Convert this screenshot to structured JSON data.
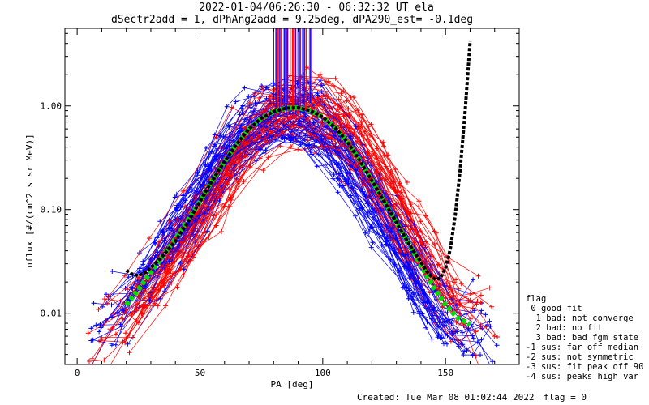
{
  "chart_data": {
    "type": "line",
    "title": "2022-01-04/06:26:30 - 06:32:32 UT ela",
    "subtitle": "dSectr2add = 1, dPhAng2add = 9.25deg, dPA290_est=  -0.1deg",
    "xlabel": "PA [deg]",
    "ylabel": "nflux [#/(cm^2 s sr MeV)]",
    "xlim": [
      -5,
      180
    ],
    "ylim": [
      0.0032,
      5.6
    ],
    "yscale": "log",
    "x_ticks": [
      0,
      50,
      100,
      150
    ],
    "x_tick_labels": [
      "0",
      "50",
      "100",
      "150"
    ],
    "y_ticks": [
      0.01,
      0.1,
      1.0
    ],
    "y_tick_labels": [
      "0.01",
      "0.10",
      "1.00"
    ],
    "series": [
      {
        "name": "",
        "color": "#00dd00",
        "style": "dashed-thick",
        "x": [
          20,
          25,
          30,
          35,
          40,
          45,
          50,
          55,
          60,
          65,
          70,
          75,
          80,
          85,
          90,
          95,
          100,
          105,
          110,
          115,
          120,
          125,
          130,
          135,
          140,
          145,
          150,
          155,
          160
        ],
        "y": [
          0.012,
          0.017,
          0.025,
          0.036,
          0.052,
          0.078,
          0.12,
          0.19,
          0.29,
          0.43,
          0.6,
          0.76,
          0.88,
          0.95,
          0.96,
          0.9,
          0.78,
          0.62,
          0.45,
          0.3,
          0.19,
          0.12,
          0.075,
          0.047,
          0.029,
          0.018,
          0.012,
          0.009,
          0.0078
        ]
      },
      {
        "name": "",
        "color": "#000000",
        "style": "dashed-thick",
        "x": [
          20,
          22,
          25,
          28,
          31,
          34,
          37,
          40,
          45,
          50,
          55,
          60,
          65,
          70,
          75,
          80,
          85,
          90,
          95,
          100,
          105,
          110,
          115,
          120,
          125,
          130,
          135,
          140,
          143,
          146,
          148,
          150,
          152,
          154,
          156,
          158,
          160
        ],
        "y": [
          0.026,
          0.024,
          0.023,
          0.025,
          0.029,
          0.034,
          0.041,
          0.05,
          0.075,
          0.12,
          0.19,
          0.29,
          0.43,
          0.6,
          0.76,
          0.88,
          0.95,
          0.96,
          0.9,
          0.78,
          0.62,
          0.45,
          0.3,
          0.19,
          0.12,
          0.075,
          0.047,
          0.031,
          0.024,
          0.021,
          0.022,
          0.027,
          0.042,
          0.09,
          0.25,
          0.9,
          4.2
        ]
      }
    ],
    "scatter_colors": [
      "#ff0000",
      "#0000ff"
    ]
  },
  "legend": {
    "title": "flag",
    "items": [
      " 0 good fit",
      "  1 bad: not converge",
      "  2 bad: no fit",
      "  3 bad: bad fgm state",
      "-1 sus: far off median",
      "-2 sus: not symmetric",
      "-3 sus: fit peak off 90",
      "-4 sus: peaks high var"
    ]
  },
  "footer": {
    "created": "Created: Tue Mar 08 01:02:44 2022",
    "flag": "flag = 0"
  }
}
